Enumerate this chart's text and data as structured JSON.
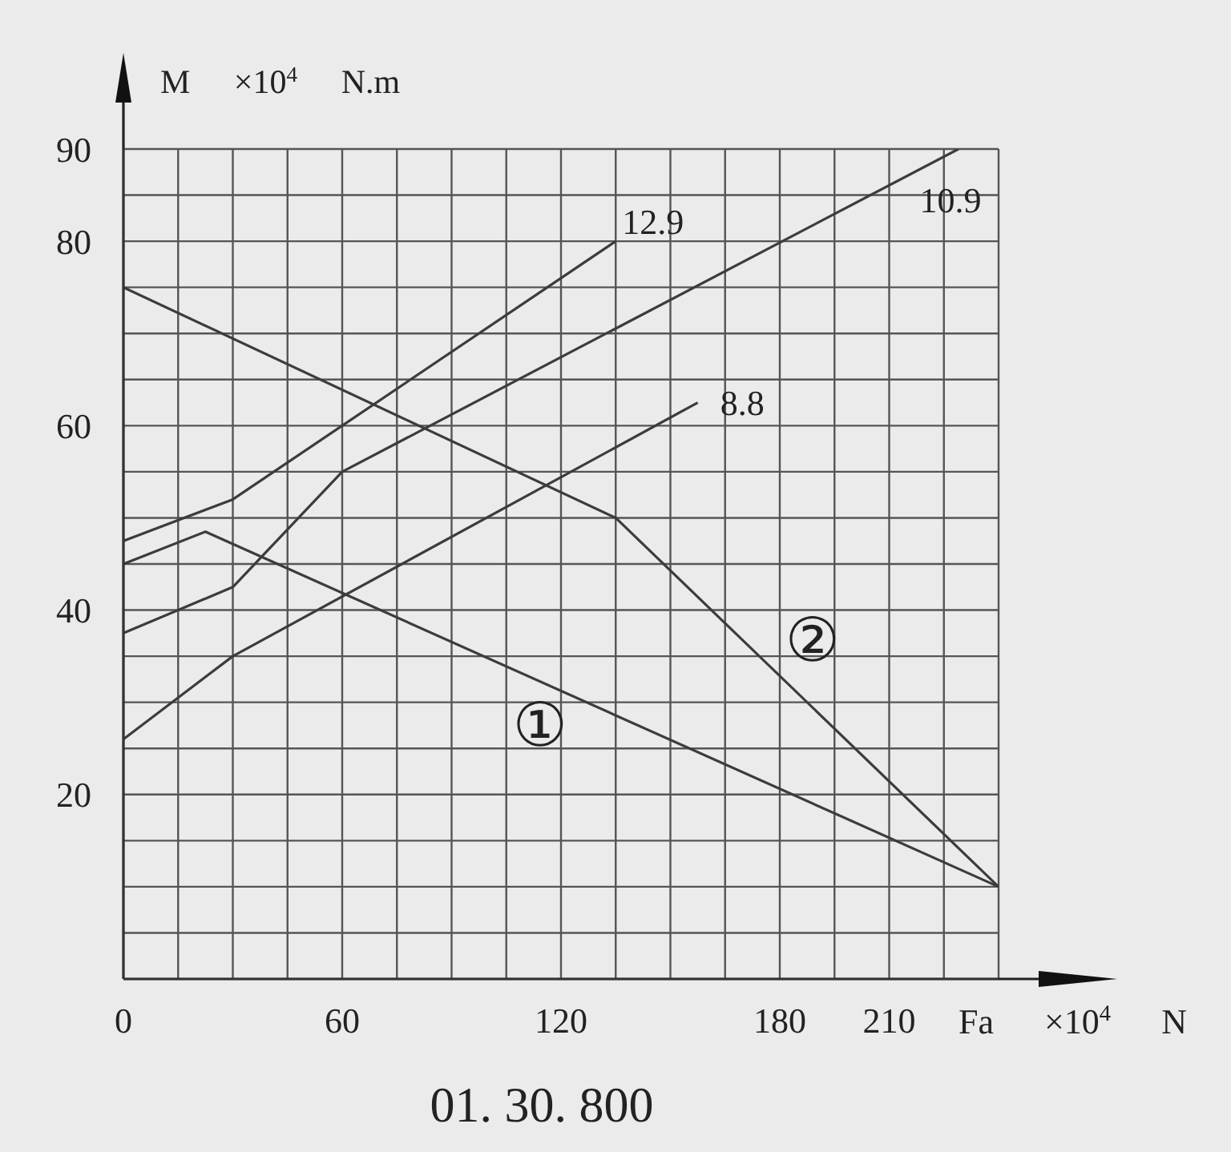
{
  "chart_data": {
    "type": "line",
    "xlabel": "Fa ×10$^{4}$ N",
    "ylabel": "M ×10$^{4}$ N.m",
    "annotations": [
      "01. 30. 800"
    ],
    "xlim": [
      0,
      240
    ],
    "ylim": [
      0,
      90
    ],
    "xticks": [
      0,
      {
        "value": 15,
        "label": null
      },
      {
        "value": 30,
        "label": null
      },
      {
        "value": 45,
        "label": null
      },
      60,
      {
        "value": 75,
        "label": null
      },
      {
        "value": 90,
        "label": null
      },
      {
        "value": 105,
        "label": null
      },
      120,
      {
        "value": 135,
        "label": null
      },
      {
        "value": 150,
        "label": null
      },
      {
        "value": 165,
        "label": null
      },
      180,
      {
        "value": 195,
        "label": null
      },
      210,
      {
        "value": 225,
        "label": null
      },
      {
        "value": 240,
        "label": null
      }
    ],
    "yticks": [
      {
        "value": 0,
        "label": null
      },
      {
        "value": 5,
        "label": null
      },
      {
        "value": 10,
        "label": null
      },
      {
        "value": 15,
        "label": null
      },
      20,
      {
        "value": 25,
        "label": null
      },
      {
        "value": 30,
        "label": null
      },
      {
        "value": 35,
        "label": null
      },
      40,
      {
        "value": 45,
        "label": null
      },
      {
        "value": 50,
        "label": null
      },
      {
        "value": 55,
        "label": null
      },
      60,
      {
        "value": 65,
        "label": null
      },
      {
        "value": 70,
        "label": null
      },
      {
        "value": 75,
        "label": null
      },
      80,
      {
        "value": 85,
        "label": null
      },
      90
    ],
    "grid": true,
    "marker": "none",
    "line_style": "solid",
    "series": [
      {
        "name": "12.9",
        "color": "#3c3c3c",
        "x": [
          0,
          30,
          135
        ],
        "values": [
          47.5,
          52,
          80
        ]
      },
      {
        "name": "10.9",
        "color": "#3c3c3c",
        "x": [
          0,
          30,
          60,
          229
        ],
        "values": [
          37.5,
          42.5,
          55,
          90
        ]
      },
      {
        "name": "8.8",
        "color": "#3c3c3c",
        "x": [
          0,
          30,
          157.5
        ],
        "values": [
          26,
          35,
          62.5
        ]
      },
      {
        "name": "①",
        "color": "#3c3c3c",
        "x": [
          0,
          22.5,
          240
        ],
        "values": [
          45,
          48.5,
          10
        ]
      },
      {
        "name": "②",
        "color": "#3c3c3c",
        "x": [
          0,
          135,
          240
        ],
        "values": [
          75,
          50,
          10
        ]
      }
    ]
  }
}
